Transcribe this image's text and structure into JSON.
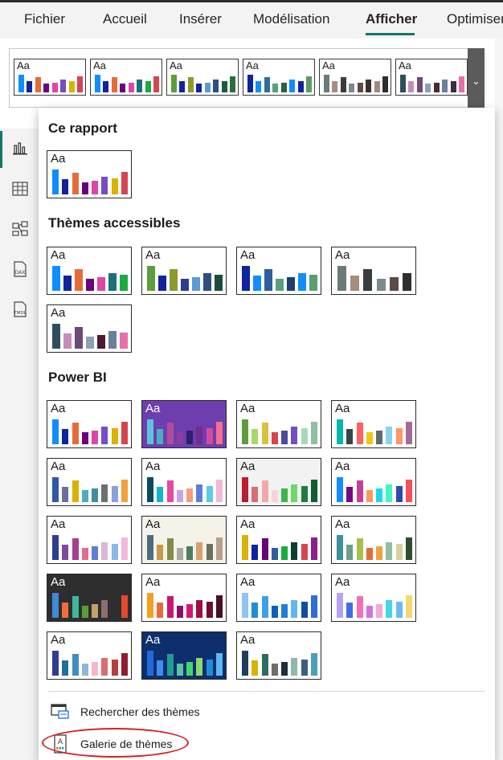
{
  "tabs": [
    {
      "label": "Fichier",
      "active": false
    },
    {
      "label": "Accueil",
      "active": false
    },
    {
      "label": "Insérer",
      "active": false
    },
    {
      "label": "Modélisation",
      "active": false
    },
    {
      "label": "Afficher",
      "active": true
    },
    {
      "label": "Optimiser",
      "active": false
    }
  ],
  "accent_color": "#117865",
  "swatch_label": "Aa",
  "ribbon_gallery": [
    {
      "colors": [
        "#118DFF",
        "#12239E",
        "#E66C37",
        "#6B007B",
        "#E044A7",
        "#744EC2",
        "#D9B300",
        "#D64550"
      ]
    },
    {
      "colors": [
        "#118DFF",
        "#12239E",
        "#E66C37",
        "#6B007B",
        "#E044A7",
        "#197278",
        "#1AAB40",
        "#D64550"
      ]
    },
    {
      "colors": [
        "#5C9E3C",
        "#12239E",
        "#8D9B2E",
        "#12239E",
        "#5B9BD5",
        "#2E4E7E",
        "#1A5C3E",
        "#2A6E3E"
      ]
    },
    {
      "colors": [
        "#12239E",
        "#118DFF",
        "#2E6E9E",
        "#5B9E7E",
        "#2E5E3E",
        "#118DFF",
        "#12239E",
        "#5B9E5E"
      ]
    },
    {
      "colors": [
        "#6B7B7B",
        "#A88C7C",
        "#3C3C3C",
        "#7B8B8B",
        "#5C4A46",
        "#3C2E2E",
        "#9C8C7C",
        "#2E2E2E"
      ]
    },
    {
      "colors": [
        "#2E4E5E",
        "#C48DB7",
        "#6B4A7A",
        "#8CA0B7",
        "#4A2A3A",
        "#6B7E9E",
        "#3E2E3E",
        "#E96FA8"
      ]
    }
  ],
  "sections": [
    {
      "title": "Ce rapport",
      "swatches": [
        {
          "colors": [
            "#118DFF",
            "#12239E",
            "#E66C37",
            "#6B007B",
            "#E044A7",
            "#744EC2",
            "#D9B300",
            "#D64550"
          ]
        }
      ]
    },
    {
      "title": "Thèmes accessibles",
      "swatches": [
        {
          "colors": [
            "#118DFF",
            "#12239E",
            "#E66C37",
            "#6B007B",
            "#E044A7",
            "#197278",
            "#1AAB40"
          ]
        },
        {
          "colors": [
            "#5C9E3C",
            "#12239E",
            "#8D9B2E",
            "#2E3E8E",
            "#5B9BD5",
            "#2E4E7E",
            "#1A4C3E"
          ]
        },
        {
          "colors": [
            "#12239E",
            "#118DFF",
            "#2E5E9E",
            "#5B9E7E",
            "#1E3E6E",
            "#118DFF",
            "#5B9E6E"
          ]
        },
        {
          "colors": [
            "#6B7B7B",
            "#A88C7C",
            "#3C3C3C",
            "#7B8B8B",
            "#5C4A46",
            "#2E2E2E"
          ]
        },
        {
          "colors": [
            "#2E4E5E",
            "#C48DB7",
            "#6B4A7A",
            "#8CA0B7",
            "#4A1A2E",
            "#6B7E9E",
            "#E96FA8"
          ]
        }
      ]
    },
    {
      "title": "Power BI",
      "swatches": [
        {
          "colors": [
            "#118DFF",
            "#12239E",
            "#E66C37",
            "#6B007B",
            "#E044A7",
            "#744EC2",
            "#D9B300",
            "#D64550"
          ]
        },
        {
          "colors": [
            "#5BC4D8",
            "#4AAEBE",
            "#B04C9C",
            "#8C3E9C",
            "#2E1E6E",
            "#6E2E8E",
            "#D64A9E",
            "#F56E8E"
          ],
          "bg": "#6E3EAE",
          "light": true
        },
        {
          "colors": [
            "#5C9E3C",
            "#A8D86C",
            "#D9C23C",
            "#D64550",
            "#4A4A9E",
            "#744EC2",
            "#A8D8B8",
            "#8CC0A0"
          ]
        },
        {
          "colors": [
            "#01B8AA",
            "#374649",
            "#FD625E",
            "#F2C80F",
            "#5F6B6D",
            "#8AD4EB",
            "#FE9666",
            "#A66999"
          ]
        },
        {
          "colors": [
            "#3257A8",
            "#6E6E9E",
            "#D9B300",
            "#4AAEBE",
            "#3E8E9E",
            "#6E6E6E",
            "#8CA0D8",
            "#F2A03C"
          ]
        },
        {
          "colors": [
            "#0E4A5E",
            "#12B5CB",
            "#E64A9C",
            "#C3A2E8",
            "#F59E7E",
            "#5B7ED8",
            "#5BCBE8",
            "#F2B8D8"
          ]
        },
        {
          "colors": [
            "#B81E2E",
            "#D86E6E",
            "#F2A8A8",
            "#F5D5D5",
            "#3CB84A",
            "#6ED86E",
            "#1E7E3E",
            "#0E5E2E"
          ],
          "bg": "#F2F2F2"
        },
        {
          "colors": [
            "#118DFF",
            "#750985",
            "#C83D95",
            "#FF985E",
            "#1DD5EE",
            "#42F7C0",
            "#3049AD",
            "#F64F5C"
          ]
        },
        {
          "colors": [
            "#2E3E8E",
            "#7E4A9E",
            "#A83E8E",
            "#E66C8C",
            "#5B7ED8",
            "#D8B8D8",
            "#8CB8E8",
            "#F2B8D8"
          ]
        },
        {
          "colors": [
            "#4A6E7E",
            "#C49A4A",
            "#7E8E4A",
            "#A8A8A8",
            "#4A7E5E",
            "#D8A06E",
            "#6E6E5E",
            "#B8A08C"
          ],
          "bg": "#F5F2EA"
        },
        {
          "colors": [
            "#D9B300",
            "#12239E",
            "#6B007B",
            "#2E5E9E",
            "#1AAB40",
            "#0E3E2E",
            "#D64550",
            "#8C1E8E"
          ]
        },
        {
          "colors": [
            "#3E8E9E",
            "#6E9E8E",
            "#A8C04A",
            "#E66C37",
            "#F2A03C",
            "#8CC0A0",
            "#D8D0A0",
            "#2E4E2E"
          ]
        },
        {
          "colors": [
            "#3C8CD8",
            "#F26E3C",
            "#3CB89E",
            "#5B9E3C",
            "#C4A06E",
            "#8C6E6E",
            "#2E2E2E",
            "#E64A2E"
          ],
          "bg": "#2E2E2E",
          "light": true
        },
        {
          "colors": [
            "#F2A01E",
            "#E66C37",
            "#C8186E",
            "#8E0E6E",
            "#D8186E",
            "#A00E3E",
            "#6E0E2E",
            "#4A0E1E"
          ]
        },
        {
          "colors": [
            "#8CC4F2",
            "#1E8ED8",
            "#3CA0E8",
            "#0E5EB8",
            "#1E7ED8",
            "#5BB8F2",
            "#0E4E9E",
            "#2E6ED8"
          ]
        },
        {
          "colors": [
            "#B8A0F2",
            "#3E6EE8",
            "#F26EB8",
            "#D86ED8",
            "#F2A8D8",
            "#3ED8E8",
            "#6EB8F2",
            "#F2D86E"
          ]
        },
        {
          "colors": [
            "#2E3E8E",
            "#1E6E9E",
            "#3E8EC4",
            "#8CB8D8",
            "#F2B8C8",
            "#D86E6E",
            "#B83E3E",
            "#8E1E2E"
          ]
        },
        {
          "colors": [
            "#1E6ED8",
            "#3E8EF2",
            "#1E9E8E",
            "#5BC49E",
            "#3ED86E",
            "#8ED86E",
            "#1E8ED8",
            "#5BB8F2"
          ],
          "bg": "#0E2E6E",
          "light": true
        },
        {
          "colors": [
            "#1E3E5E",
            "#D9B300",
            "#2E6E5E",
            "#6E6E6E",
            "#1E2E3E",
            "#8EB8A8",
            "#3E5E7E",
            "#4AA0B8"
          ]
        }
      ]
    }
  ],
  "menu": {
    "browse_label": "Rechercher des thèmes",
    "gallery_label": "Galerie de thèmes"
  }
}
